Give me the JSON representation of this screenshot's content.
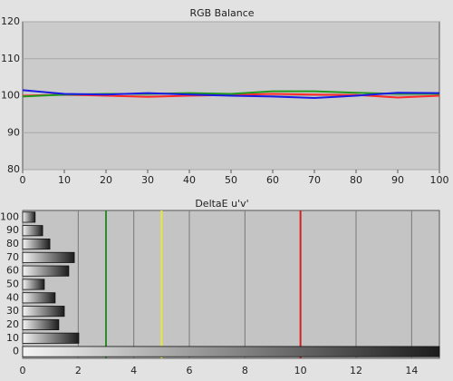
{
  "chart_data": [
    {
      "type": "line",
      "title": "RGB Balance",
      "x": [
        0,
        10,
        20,
        30,
        40,
        50,
        60,
        70,
        80,
        90,
        100
      ],
      "series": [
        {
          "color": "#ff2a2a",
          "values": [
            100,
            100.3,
            100,
            99.7,
            100,
            100.2,
            100.5,
            100.3,
            100.2,
            99.5,
            100
          ]
        },
        {
          "color": "#1f9a1f",
          "values": [
            99.8,
            100.3,
            100.5,
            100.5,
            100.7,
            100.5,
            101.2,
            101.2,
            100.8,
            100.5,
            100.5
          ]
        },
        {
          "color": "#1a1ae6",
          "values": [
            101.5,
            100.5,
            100.3,
            100.7,
            100.3,
            100,
            99.8,
            99.4,
            100,
            100.8,
            100.7
          ]
        }
      ],
      "xlim": [
        0,
        100
      ],
      "xticks": [
        0,
        10,
        20,
        30,
        40,
        50,
        60,
        70,
        80,
        90,
        100
      ],
      "ylim": [
        80,
        120
      ],
      "yticks": [
        80,
        90,
        100,
        110,
        120
      ],
      "grid": true
    },
    {
      "type": "hbar",
      "title": "DeltaE u'v'",
      "categories": [
        "0",
        "10",
        "20",
        "30",
        "40",
        "50",
        "60",
        "70",
        "80",
        "90",
        "100"
      ],
      "values": [
        15,
        2.02,
        1.3,
        1.5,
        1.17,
        0.78,
        1.66,
        1.86,
        0.98,
        0.72,
        0.45
      ],
      "xlim": [
        0,
        15
      ],
      "xticks": [
        0,
        2,
        4,
        6,
        8,
        10,
        12,
        14
      ],
      "grid": true,
      "reference_lines": [
        {
          "value": 3,
          "color": "#2e8b2e"
        },
        {
          "value": 5,
          "color": "#e8e83a"
        },
        {
          "value": 10,
          "color": "#d42020"
        }
      ]
    }
  ]
}
